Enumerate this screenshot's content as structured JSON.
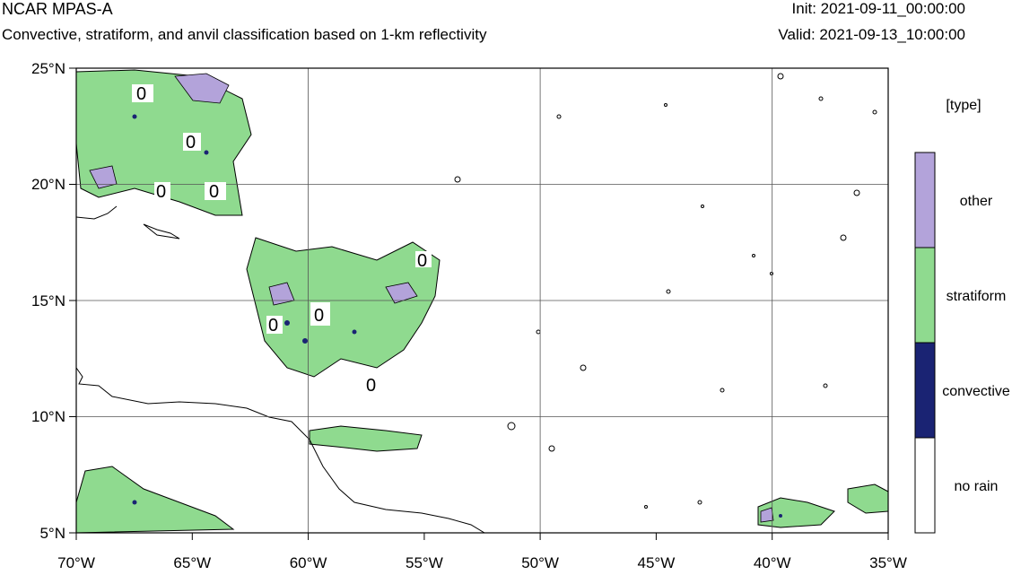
{
  "header": {
    "title": "NCAR MPAS-A",
    "subtitle": "Convective, stratiform, and anvil classification based on 1-km reflectivity",
    "init": "Init: 2021-09-11_00:00:00",
    "valid": "Valid: 2021-09-13_10:00:00"
  },
  "map": {
    "lon_labels": [
      "70°W",
      "65°W",
      "60°W",
      "55°W",
      "50°W",
      "45°W",
      "40°W",
      "35°W"
    ],
    "lat_labels": [
      "25°N",
      "20°N",
      "15°N",
      "10°N",
      "5°N"
    ],
    "lon_range": [
      -70,
      -35
    ],
    "lat_range": [
      5,
      25
    ],
    "contour_labels": [
      "0",
      "0",
      "0",
      "0",
      "0",
      "0",
      "0",
      "0"
    ]
  },
  "legend": {
    "title": "[type]",
    "items": [
      {
        "label": "other",
        "color": "#b3a3da"
      },
      {
        "label": "stratiform",
        "color": "#8fda8f"
      },
      {
        "label": "convective",
        "color": "#1a2373"
      },
      {
        "label": "no rain",
        "color": "#ffffff"
      }
    ]
  }
}
